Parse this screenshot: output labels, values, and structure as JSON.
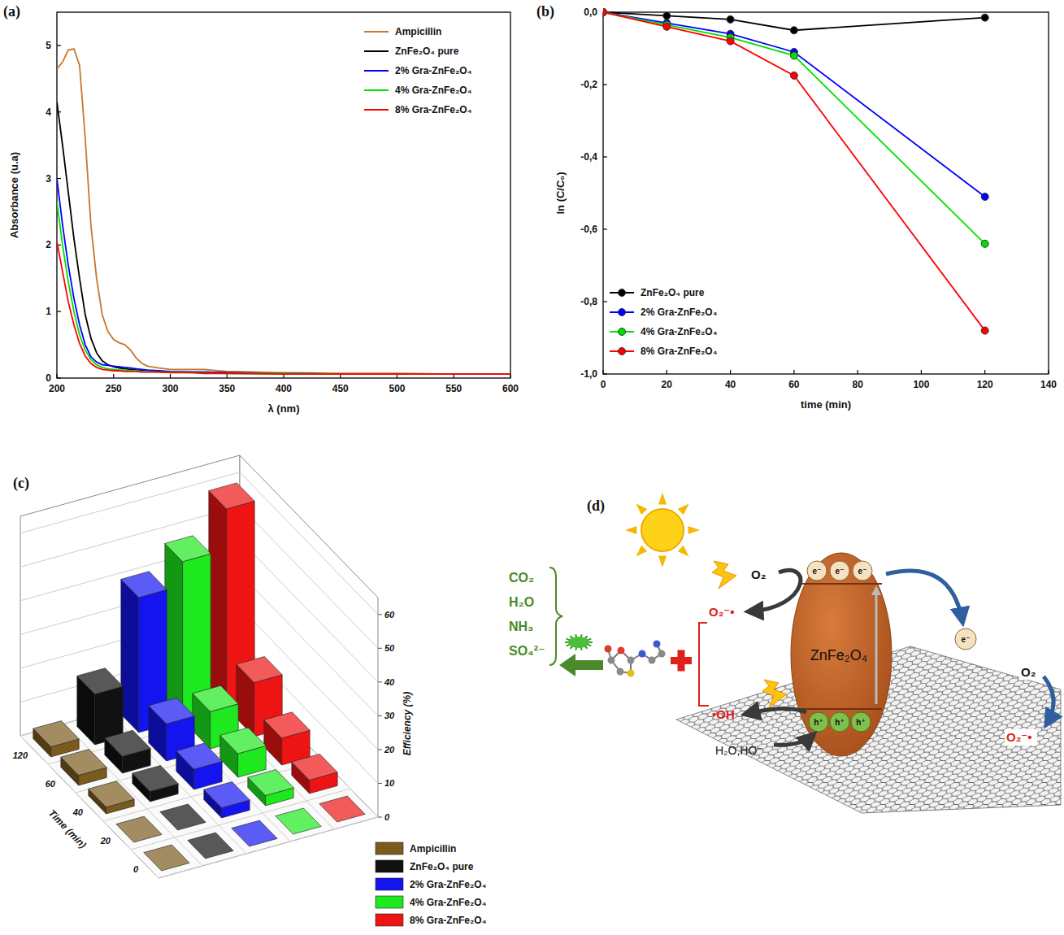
{
  "panel_labels": [
    "(a)",
    "(b)",
    "(c)",
    "(d)"
  ],
  "chart_data": [
    {
      "type": "line",
      "x_label": "λ (nm)",
      "y_label": "Absorbance (u.a)",
      "x": [
        200,
        205,
        210,
        215,
        220,
        225,
        230,
        235,
        240,
        245,
        250,
        255,
        260,
        265,
        270,
        275,
        280,
        290,
        300,
        320,
        330,
        350,
        400,
        450,
        500,
        550,
        600
      ],
      "series": [
        {
          "name": "Ampicillin",
          "color": "#c8762d",
          "values": [
            4.65,
            4.75,
            4.93,
            4.95,
            4.7,
            3.6,
            2.3,
            1.5,
            0.95,
            0.7,
            0.58,
            0.53,
            0.5,
            0.42,
            0.3,
            0.22,
            0.18,
            0.15,
            0.13,
            0.13,
            0.13,
            0.1,
            0.08,
            0.07,
            0.07,
            0.06,
            0.06
          ]
        },
        {
          "name": "ZnFe₂O₄ pure",
          "color": "#000000",
          "values": [
            4.15,
            3.5,
            2.8,
            2.1,
            1.5,
            0.95,
            0.6,
            0.38,
            0.26,
            0.2,
            0.17,
            0.15,
            0.14,
            0.13,
            0.12,
            0.11,
            0.1,
            0.1,
            0.09,
            0.09,
            0.09,
            0.08,
            0.07,
            0.06,
            0.06,
            0.06,
            0.06
          ]
        },
        {
          "name": "2% Gra-ZnFe₂O₄",
          "color": "#0000ff",
          "values": [
            3.0,
            2.3,
            1.7,
            1.2,
            0.8,
            0.5,
            0.32,
            0.24,
            0.2,
            0.19,
            0.18,
            0.17,
            0.16,
            0.15,
            0.14,
            0.13,
            0.12,
            0.11,
            0.1,
            0.09,
            0.09,
            0.08,
            0.07,
            0.06,
            0.06,
            0.06,
            0.06
          ]
        },
        {
          "name": "4% Gra-ZnFe₂O₄",
          "color": "#00e000",
          "values": [
            2.65,
            2.0,
            1.45,
            1.0,
            0.65,
            0.42,
            0.28,
            0.2,
            0.16,
            0.14,
            0.13,
            0.12,
            0.12,
            0.11,
            0.11,
            0.1,
            0.1,
            0.09,
            0.09,
            0.08,
            0.08,
            0.07,
            0.07,
            0.06,
            0.06,
            0.06,
            0.06
          ]
        },
        {
          "name": "8% Gra-ZnFe₂O₄",
          "color": "#ff0000",
          "values": [
            2.05,
            1.6,
            1.15,
            0.8,
            0.52,
            0.33,
            0.22,
            0.16,
            0.13,
            0.12,
            0.11,
            0.11,
            0.1,
            0.1,
            0.1,
            0.09,
            0.09,
            0.09,
            0.08,
            0.08,
            0.07,
            0.07,
            0.06,
            0.06,
            0.06,
            0.06,
            0.06
          ]
        }
      ],
      "xlim": [
        200,
        600
      ],
      "ylim": [
        0,
        5.5
      ],
      "xticks": [
        200,
        250,
        300,
        350,
        400,
        450,
        500,
        550,
        600
      ],
      "yticks": [
        0,
        1,
        2,
        3,
        4,
        5
      ],
      "grid": false,
      "legend": "upper right"
    },
    {
      "type": "line",
      "x_label": "time (min)",
      "y_label": "ln (C/C₀)",
      "x": [
        0,
        20,
        40,
        60,
        120
      ],
      "series": [
        {
          "name": "ZnFe₂O₄ pure",
          "color": "#000000",
          "marker": "circle",
          "values": [
            0,
            -0.01,
            -0.02,
            -0.05,
            -0.015
          ]
        },
        {
          "name": "2% Gra-ZnFe₂O₄",
          "color": "#0000ff",
          "marker": "circle",
          "values": [
            0,
            -0.03,
            -0.06,
            -0.11,
            -0.51
          ]
        },
        {
          "name": "4% Gra-ZnFe₂O₄",
          "color": "#00e000",
          "marker": "circle",
          "values": [
            0,
            -0.035,
            -0.07,
            -0.12,
            -0.64
          ]
        },
        {
          "name": "8% Gra-ZnFe₂O₄",
          "color": "#ff0000",
          "marker": "circle",
          "values": [
            0,
            -0.04,
            -0.08,
            -0.175,
            -0.88
          ]
        }
      ],
      "xlim": [
        0,
        140
      ],
      "ylim": [
        -1,
        0
      ],
      "xticks": [
        0,
        20,
        40,
        60,
        80,
        100,
        120,
        140
      ],
      "yticks": [
        {
          "value": 0,
          "label": "0,0"
        },
        {
          "value": -0.2,
          "label": "-0,2"
        },
        {
          "value": -0.4,
          "label": "-0,4"
        },
        {
          "value": -0.6,
          "label": "-0,6"
        },
        {
          "value": -0.8,
          "label": "-0,8"
        },
        {
          "value": -1,
          "label": "-1,0"
        }
      ],
      "grid": false,
      "legend": "lower left"
    },
    {
      "type": "bar3d",
      "x_label": "Time (min)",
      "y_label": "Efficiency (%)",
      "categories": [
        "0",
        "20",
        "40",
        "60",
        "120"
      ],
      "series": [
        {
          "name": "Ampicillin",
          "color": "#7b5a1e",
          "values": [
            0,
            0,
            2,
            3,
            3
          ]
        },
        {
          "name": "ZnFe₂O₄ pure",
          "color": "#111111",
          "values": [
            0,
            0,
            3,
            5,
            15
          ]
        },
        {
          "name": "2% Gra-ZnFe₂O₄",
          "color": "#1414f0",
          "values": [
            0,
            3,
            6,
            11,
            40
          ]
        },
        {
          "name": "4% Gra-ZnFe₂O₄",
          "color": "#1ee81e",
          "values": [
            0,
            3,
            7,
            11,
            47
          ]
        },
        {
          "name": "8% Gra-ZnFe₂O₄",
          "color": "#ee1414",
          "values": [
            0,
            4,
            8,
            16,
            59
          ]
        }
      ],
      "ylim": [
        0,
        65
      ],
      "yticks": [
        0,
        10,
        20,
        30,
        40,
        50,
        60
      ],
      "grid": true,
      "legend": "lower right"
    }
  ],
  "diagram": {
    "catalyst": "ZnFe₂O₄",
    "oxygen_left": "O₂",
    "superoxide_left": "O₂⁻•",
    "hydroxyl": "•OH",
    "water": "H₂O,HO⁻",
    "electrons": [
      "e⁻",
      "e⁻",
      "e⁻"
    ],
    "holes": [
      "h⁺",
      "h⁺",
      "h⁺"
    ],
    "transferred_electron": "e⁻",
    "oxygen_right": "O₂",
    "superoxide_right": "O₂⁻•",
    "products": [
      "CO₂",
      "H₂O",
      "NH₃",
      "SO₄²⁻"
    ]
  }
}
